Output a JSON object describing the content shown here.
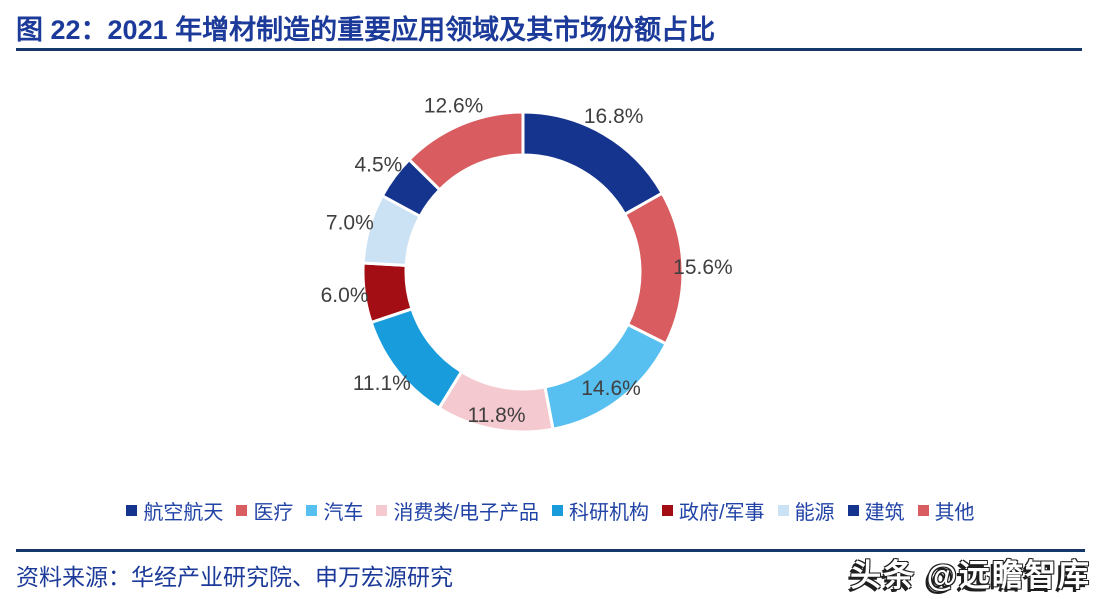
{
  "title": {
    "text": "图 22：2021 年增材制造的重要应用领域及其市场份额占比"
  },
  "chart_data": {
    "type": "pie",
    "subtype": "donut",
    "title": "2021 年增材制造的重要应用领域及其市场份额占比",
    "start_angle_deg": 0,
    "direction": "clockwise",
    "legend_position": "bottom",
    "hole_radius_ratio": 0.73,
    "label_color": "#3F3F3F",
    "segments": [
      {
        "label": "航空航天",
        "value": 16.8,
        "display": "16.8%",
        "color": "#15348D"
      },
      {
        "label": "医疗",
        "value": 15.6,
        "display": "15.6%",
        "color": "#D85C60"
      },
      {
        "label": "汽车",
        "value": 14.6,
        "display": "14.6%",
        "color": "#58C0F0"
      },
      {
        "label": "消费类/电子产品",
        "value": 11.8,
        "display": "11.8%",
        "color": "#F4C9CF"
      },
      {
        "label": "科研机构",
        "value": 11.1,
        "display": "11.1%",
        "color": "#189CDB"
      },
      {
        "label": "政府/军事",
        "value": 6.0,
        "display": "6.0%",
        "color": "#A20E13"
      },
      {
        "label": "能源",
        "value": 7.0,
        "display": "7.0%",
        "color": "#CBE1F4"
      },
      {
        "label": "建筑",
        "value": 4.5,
        "display": "4.5%",
        "color": "#15348D"
      },
      {
        "label": "其他",
        "value": 12.6,
        "display": "12.6%",
        "color": "#D85C60"
      }
    ]
  },
  "footer": {
    "source": "资料来源：华经产业研究院、申万宏源研究"
  },
  "watermark": {
    "text": "头条 @远瞻智库"
  },
  "theme": {
    "background": "#FFFFFF",
    "title_color": "#1C3A99",
    "legend_text_color": "#2143A5",
    "source_text_color": "#1C3A99",
    "divider_color": "#14386B",
    "segment_gap_color": "#FFFFFF"
  }
}
